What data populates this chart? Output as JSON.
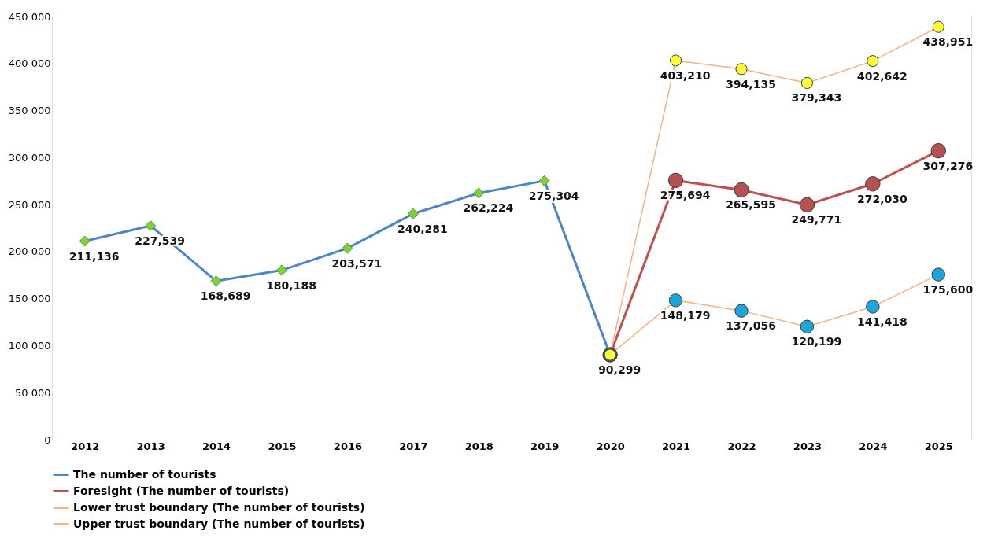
{
  "chart_data": {
    "type": "line",
    "categories": [
      "2012",
      "2013",
      "2014",
      "2015",
      "2016",
      "2017",
      "2018",
      "2019",
      "2020",
      "2021",
      "2022",
      "2023",
      "2024",
      "2025"
    ],
    "series": [
      {
        "name": "The number of tourists",
        "color": "#4a86c8",
        "marker": "diamond",
        "colors": [
          "#7fd13b",
          "#7fd13b",
          "#7fd13b",
          "#7fd13b",
          "#7fd13b",
          "#7fd13b",
          "#7fd13b",
          "#7fd13b",
          "#7fd13b",
          null,
          null,
          null,
          null,
          null
        ],
        "values": [
          211136,
          227539,
          168689,
          180188,
          203571,
          240281,
          262224,
          275304,
          90299,
          null,
          null,
          null,
          null,
          null
        ],
        "value_labels": [
          "211,136",
          "227,539",
          "168,689",
          "180,188",
          "203,571",
          "240,281",
          "262,224",
          "275,304",
          "90,299",
          null,
          null,
          null,
          null,
          null
        ]
      },
      {
        "name": "Foresight (The number of tourists)",
        "color": "#c0504d",
        "marker": "circle",
        "colors": [
          null,
          null,
          null,
          null,
          null,
          null,
          null,
          null,
          "#b5514f",
          "#b5514f",
          "#b5514f",
          "#b5514f",
          "#b5514f",
          "#b5514f"
        ],
        "values": [
          null,
          null,
          null,
          null,
          null,
          null,
          null,
          null,
          90299,
          275694,
          265595,
          249771,
          272030,
          307276
        ],
        "value_labels": [
          null,
          null,
          null,
          null,
          null,
          null,
          null,
          null,
          null,
          "275,694",
          "265,595",
          "249,771",
          "272,030",
          "307,276"
        ]
      },
      {
        "name": "Lower trust boundary (The number of tourists)",
        "color": "#f4b183",
        "marker": "circle",
        "colors": [
          null,
          null,
          null,
          null,
          null,
          null,
          null,
          null,
          "#1aa6d9",
          "#1aa6d9",
          "#1aa6d9",
          "#1aa6d9",
          "#1aa6d9",
          "#1aa6d9"
        ],
        "values": [
          null,
          null,
          null,
          null,
          null,
          null,
          null,
          null,
          90299,
          148179,
          137056,
          120199,
          141418,
          175600
        ],
        "value_labels": [
          null,
          null,
          null,
          null,
          null,
          null,
          null,
          null,
          null,
          "148,179",
          "137,056",
          "120,199",
          "141,418",
          "175,600"
        ]
      },
      {
        "name": "Upper trust boundary (The number of tourists)",
        "color": "#f4b183",
        "marker": "circle",
        "colors": [
          null,
          null,
          null,
          null,
          null,
          null,
          null,
          null,
          "#ffff33",
          "#ffff33",
          "#ffff33",
          "#ffff33",
          "#ffff33",
          "#ffff33"
        ],
        "values": [
          null,
          null,
          null,
          null,
          null,
          null,
          null,
          null,
          90299,
          403210,
          394135,
          379343,
          402642,
          438951
        ],
        "value_labels": [
          null,
          null,
          null,
          null,
          null,
          null,
          null,
          null,
          null,
          "403,210",
          "394,135",
          "379,343",
          "402,642",
          "438,951"
        ]
      }
    ],
    "ylim": [
      0,
      450000
    ],
    "yticks": [
      0,
      {
        "value": 50000,
        "label": "50 000"
      },
      {
        "value": 100000,
        "label": "100 000"
      },
      {
        "value": 150000,
        "label": "150 000"
      },
      {
        "value": 200000,
        "label": "200 000"
      },
      {
        "value": 250000,
        "label": "250 000"
      },
      {
        "value": 300000,
        "label": "300 000"
      },
      {
        "value": 350000,
        "label": "350 000"
      },
      {
        "value": 400000,
        "label": "400 000"
      },
      {
        "value": 450000,
        "label": "450 000"
      }
    ],
    "grid": false,
    "legend": "bottom",
    "line_style": "solid"
  }
}
